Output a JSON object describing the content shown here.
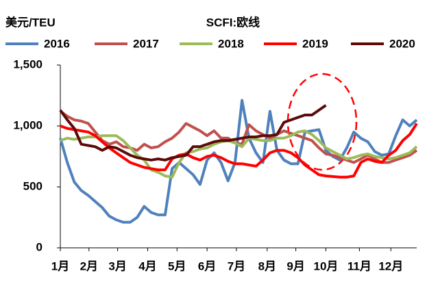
{
  "chart_data": {
    "type": "line",
    "title": "SCFI:欧线",
    "y_label": "美元/TEU",
    "x": [
      0,
      1,
      2,
      3,
      4,
      5,
      6,
      7,
      8,
      9,
      10,
      11,
      12,
      13,
      14,
      15,
      16,
      17,
      18,
      19,
      20,
      21,
      22,
      23,
      24,
      25,
      26,
      27,
      28,
      29,
      30,
      31,
      32,
      33,
      34,
      35,
      36,
      37,
      38,
      39,
      40,
      41,
      42,
      43,
      44,
      45,
      46,
      47,
      48,
      49,
      50,
      51
    ],
    "xlim": [
      0,
      51
    ],
    "xticks": [
      {
        "value": 0,
        "label": "1月"
      },
      {
        "value": 4.1,
        "label": "2月"
      },
      {
        "value": 8.2,
        "label": "3月"
      },
      {
        "value": 12.5,
        "label": "4月"
      },
      {
        "value": 16.7,
        "label": "5月"
      },
      {
        "value": 21,
        "label": "6月"
      },
      {
        "value": 25.2,
        "label": "7月"
      },
      {
        "value": 29.6,
        "label": "8月"
      },
      {
        "value": 33.7,
        "label": "9月"
      },
      {
        "value": 38,
        "label": "10月"
      },
      {
        "value": 42.8,
        "label": "11月"
      },
      {
        "value": 47.3,
        "label": "12月"
      }
    ],
    "ylim": [
      0,
      1500
    ],
    "yticks": [
      0,
      500,
      {
        "value": 1000,
        "label": "1,000"
      },
      {
        "value": 1500,
        "label": "1,500"
      }
    ],
    "grid": false,
    "series": [
      {
        "name": "2016",
        "color": "#4f81bd",
        "values": [
          900,
          700,
          540,
          470,
          430,
          380,
          330,
          260,
          230,
          210,
          210,
          250,
          340,
          290,
          270,
          270,
          650,
          700,
          650,
          600,
          520,
          720,
          780,
          700,
          550,
          700,
          1210,
          900,
          780,
          700,
          1120,
          800,
          720,
          690,
          690,
          950,
          960,
          970,
          800,
          750,
          720,
          820,
          950,
          900,
          870,
          790,
          760,
          770,
          920,
          1050,
          1000,
          1050
        ]
      },
      {
        "name": "2017",
        "color": "#c0504d",
        "values": [
          1120,
          1080,
          1050,
          1040,
          1020,
          950,
          880,
          850,
          870,
          830,
          820,
          800,
          850,
          820,
          830,
          870,
          900,
          950,
          1020,
          990,
          960,
          920,
          960,
          900,
          900,
          860,
          850,
          1010,
          960,
          930,
          900,
          930,
          960,
          940,
          920,
          900,
          880,
          820,
          770,
          760,
          740,
          720,
          700,
          730,
          760,
          730,
          700,
          700,
          720,
          740,
          760,
          800
        ]
      },
      {
        "name": "2018",
        "color": "#9bbb59",
        "values": [
          880,
          900,
          890,
          900,
          910,
          910,
          920,
          920,
          920,
          880,
          820,
          760,
          720,
          640,
          620,
          590,
          580,
          700,
          780,
          790,
          810,
          820,
          850,
          870,
          880,
          860,
          830,
          900,
          890,
          880,
          880,
          900,
          900,
          920,
          950,
          960,
          930,
          880,
          820,
          790,
          760,
          730,
          740,
          760,
          770,
          750,
          740,
          730,
          740,
          760,
          780,
          830
        ]
      },
      {
        "name": "2019",
        "color": "#ff0000",
        "values": [
          1000,
          980,
          970,
          960,
          950,
          920,
          870,
          820,
          780,
          740,
          700,
          680,
          660,
          650,
          640,
          640,
          730,
          760,
          770,
          740,
          720,
          750,
          760,
          740,
          710,
          690,
          690,
          680,
          670,
          720,
          780,
          800,
          800,
          780,
          740,
          680,
          640,
          600,
          590,
          585,
          580,
          580,
          590,
          700,
          730,
          710,
          700,
          760,
          800,
          880,
          930,
          1020
        ]
      },
      {
        "name": "2020",
        "color": "#5c0a0a",
        "values": [
          1130,
          1050,
          980,
          850,
          840,
          830,
          800,
          830,
          820,
          790,
          760,
          740,
          730,
          720,
          730,
          720,
          740,
          750,
          760,
          830,
          830,
          850,
          870,
          880,
          880,
          890,
          900,
          910,
          910,
          920,
          920,
          930,
          1030,
          1050,
          1070,
          1090,
          1090,
          1130,
          1170,
          null,
          null,
          null,
          null,
          null,
          null,
          null,
          null,
          null,
          null,
          null,
          null,
          null
        ]
      }
    ]
  }
}
